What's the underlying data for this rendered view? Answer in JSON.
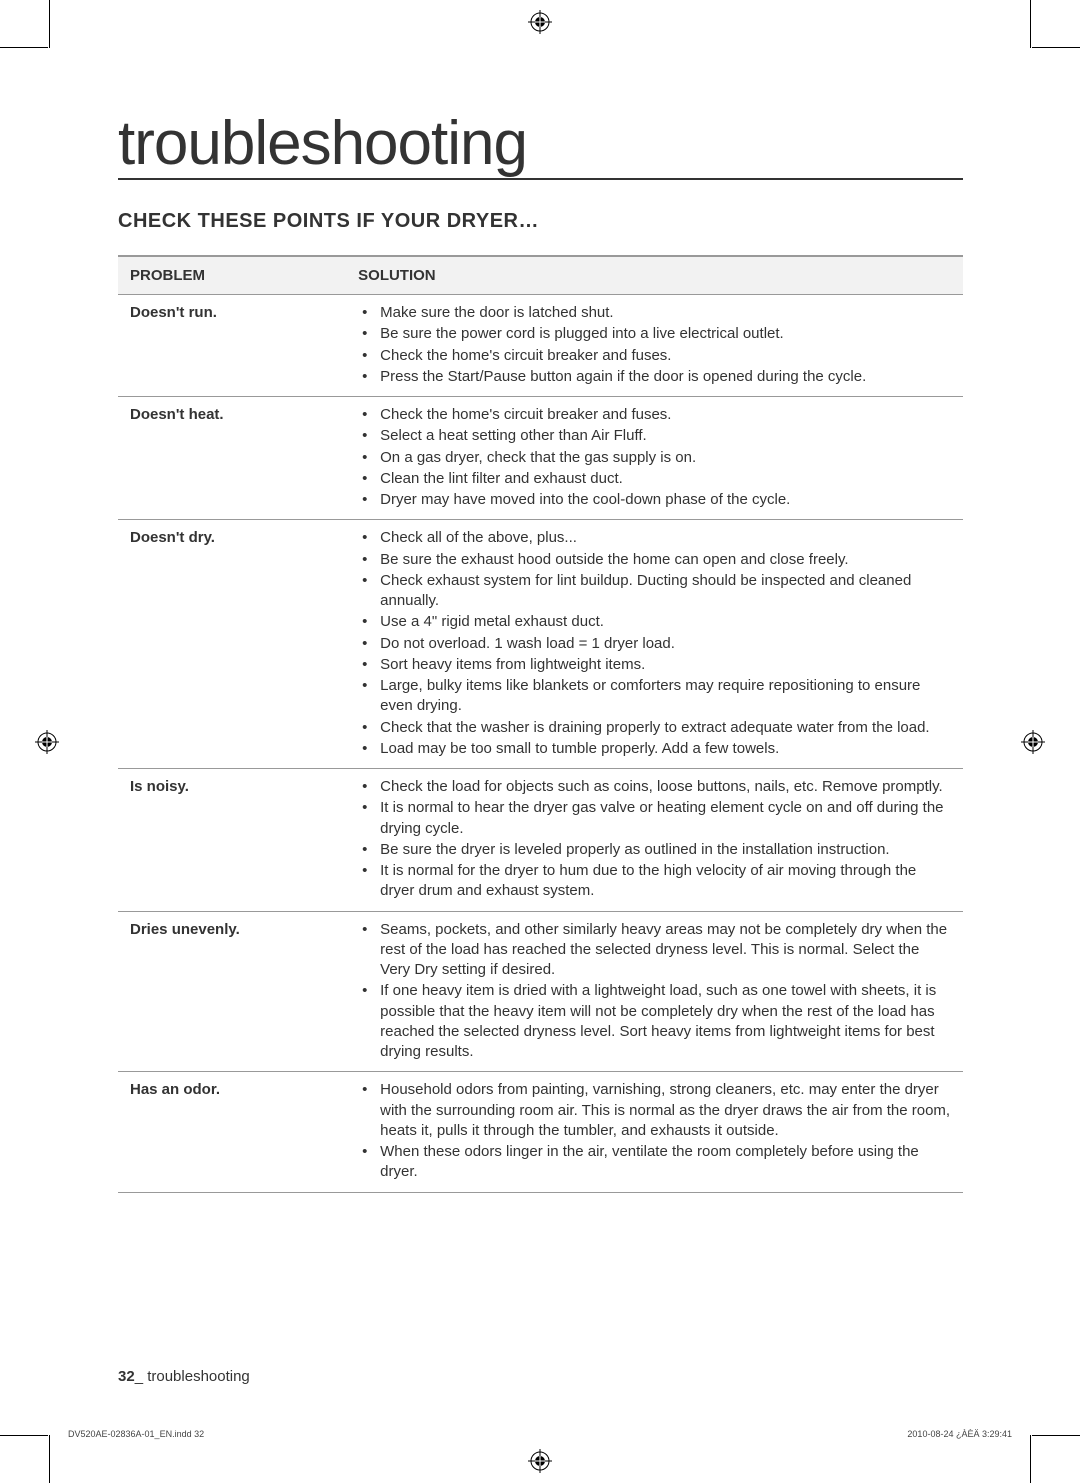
{
  "title": "troubleshooting",
  "section_heading": "CHECK THESE POINTS IF YOUR DRYER…",
  "table": {
    "header_problem": "PROBLEM",
    "header_solution": "SOLUTION",
    "rows": [
      {
        "problem": "Doesn't run.",
        "solutions": [
          "Make sure the door is latched shut.",
          "Be sure the power cord is plugged into a live electrical outlet.",
          "Check the home's circuit breaker and fuses.",
          "Press the Start/Pause button again if the door is opened during the cycle."
        ]
      },
      {
        "problem": "Doesn't heat.",
        "solutions": [
          "Check the home's circuit breaker and fuses.",
          "Select a heat setting other than Air Fluff.",
          "On a gas dryer, check that the gas supply is on.",
          "Clean the lint filter and exhaust duct.",
          "Dryer may have moved into the cool-down phase of the cycle."
        ]
      },
      {
        "problem": "Doesn't dry.",
        "solutions": [
          "Check all of the above, plus...",
          "Be sure the exhaust hood outside the home can open and close freely.",
          "Check exhaust system for lint buildup. Ducting should be inspected and cleaned annually.",
          "Use a 4\" rigid metal exhaust duct.",
          "Do not overload. 1 wash load = 1 dryer load.",
          "Sort heavy items from lightweight items.",
          "Large, bulky items like blankets or comforters may require repositioning to ensure even drying.",
          "Check that the washer is draining properly to extract adequate water from the load.",
          "Load may be too small to tumble properly. Add a few towels."
        ]
      },
      {
        "problem": "Is noisy.",
        "solutions": [
          "Check the load for objects such as coins, loose buttons, nails, etc. Remove promptly.",
          "It is normal to hear the dryer gas valve or heating element cycle on and off during the drying cycle.",
          "Be sure the dryer is leveled properly as outlined in the installation instruction.",
          "It is normal for the dryer to hum due to the high velocity of air moving through the dryer drum and exhaust system."
        ]
      },
      {
        "problem": "Dries unevenly.",
        "solutions": [
          "Seams, pockets, and other similarly heavy areas may not be completely dry when the rest of the load has reached the selected dryness level. This is normal. Select the Very Dry setting if desired.",
          "If one heavy item is dried with a lightweight load, such as one towel with sheets, it is possible that the heavy item will not be completely dry when the rest of the load has reached the selected dryness level. Sort heavy items from lightweight items for best drying results."
        ]
      },
      {
        "problem": "Has an odor.",
        "solutions": [
          "Household odors from painting, varnishing, strong cleaners, etc. may enter the dryer with the surrounding room air. This is normal as the dryer draws the air from the room, heats it, pulls it through the tumbler, and exhausts it outside.",
          "When these odors linger in the air, ventilate the room completely before using the dryer."
        ]
      }
    ]
  },
  "footer": {
    "page_num": "32",
    "separator": "_",
    "label": " troubleshooting"
  },
  "indd": {
    "file": "DV520AE-02836A-01_EN.indd   32",
    "timestamp": "2010-08-24   ¿ÀÈÄ 3:29:41"
  }
}
